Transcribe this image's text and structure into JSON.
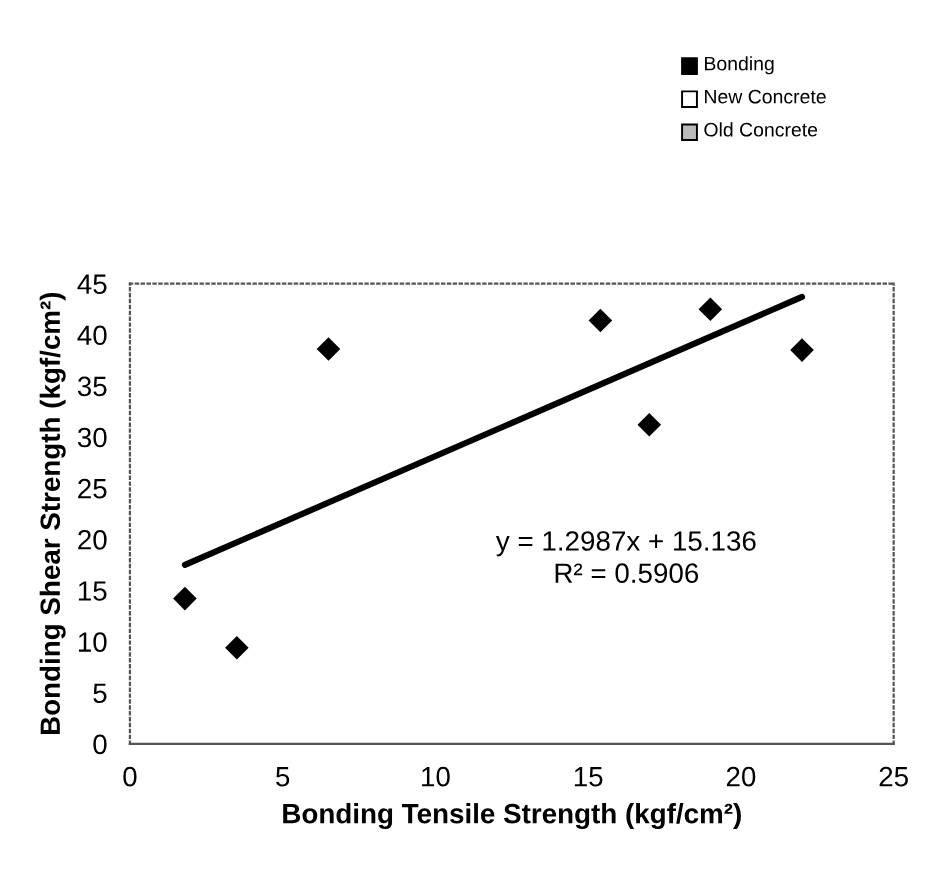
{
  "chart_data": {
    "type": "scatter",
    "xlabel": "Bonding Tensile Strength (kgf/cm²)",
    "ylabel": "Bonding Shear Strength (kgf/cm²)",
    "series": [
      {
        "color": "#000000",
        "marker": "diamond",
        "x": [
          1.8,
          3.5,
          6.5,
          15.4,
          17.0,
          19.0,
          22.0
        ],
        "values": [
          14.2,
          9.4,
          38.6,
          41.4,
          31.2,
          42.5,
          38.5
        ]
      },
      {
        "type": "line",
        "color": "#000000",
        "marker": "none",
        "x": [
          1.8,
          22.0
        ],
        "values": [
          17.5,
          43.7
        ]
      }
    ],
    "annotations": [
      "y = 1.2987x + 15.136",
      "R² = 0.5906",
      "Bonding",
      "New Concrete",
      "Old Concrete"
    ],
    "xlim": [
      0,
      25
    ],
    "xticks": [
      0,
      5,
      10,
      15,
      20,
      25
    ],
    "ylim": [
      0,
      45
    ],
    "yticks": [
      0,
      5,
      10,
      15,
      20,
      25,
      30,
      35,
      40,
      45
    ],
    "grid": false,
    "legend": false
  }
}
